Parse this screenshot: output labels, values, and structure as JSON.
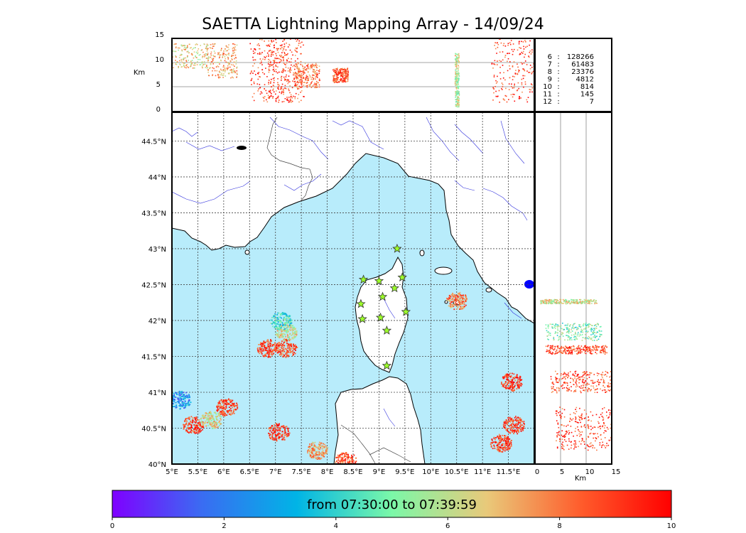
{
  "title": "SAETTA Lightning Mapping Array - 14/09/24",
  "colors": {
    "sea": "#b8ecfb",
    "land": "#ffffff",
    "river": "#3333dd",
    "border": "#444444",
    "grid": "#444444",
    "altitude_line": "#888888"
  },
  "altitude_panel": {
    "axis_label": "Km",
    "ticks": [
      "15",
      "10",
      "5",
      "0"
    ],
    "range": [
      0,
      15
    ]
  },
  "side_panel": {
    "axis_label": "Km",
    "ticks": [
      "0",
      "5",
      "10",
      "15"
    ],
    "range": [
      0,
      15
    ]
  },
  "station_counts": [
    {
      "stations": "6",
      "count": "128266",
      "highlight": false
    },
    {
      "stations": "7",
      "count": "61483",
      "highlight": true
    },
    {
      "stations": "8",
      "count": "23376",
      "highlight": false
    },
    {
      "stations": "9",
      "count": "4812",
      "highlight": false
    },
    {
      "stations": "10",
      "count": "814",
      "highlight": false
    },
    {
      "stations": "11",
      "count": "145",
      "highlight": false
    },
    {
      "stations": "12",
      "count": "7",
      "highlight": false
    }
  ],
  "map": {
    "lon_range": [
      5.0,
      12.0
    ],
    "lat_range": [
      40.0,
      44.9
    ],
    "lon_ticks": [
      "5°E",
      "5.5°E",
      "6°E",
      "6.5°E",
      "7°E",
      "7.5°E",
      "8°E",
      "8.5°E",
      "9°E",
      "9.5°E",
      "10°E",
      "10.5°E",
      "11°E",
      "11.5°E"
    ],
    "lat_ticks": [
      "44.5°N",
      "44°N",
      "43.5°N",
      "43°N",
      "42.5°N",
      "42°N",
      "41.5°N",
      "41°N",
      "40.5°N",
      "40°N"
    ],
    "stations": [
      {
        "lon": 9.35,
        "lat": 43.0
      },
      {
        "lon": 8.7,
        "lat": 42.57
      },
      {
        "lon": 9.0,
        "lat": 42.55
      },
      {
        "lon": 9.45,
        "lat": 42.6
      },
      {
        "lon": 9.3,
        "lat": 42.45
      },
      {
        "lon": 9.07,
        "lat": 42.33
      },
      {
        "lon": 8.65,
        "lat": 42.23
      },
      {
        "lon": 9.52,
        "lat": 42.12
      },
      {
        "lon": 8.68,
        "lat": 42.02
      },
      {
        "lon": 9.03,
        "lat": 42.04
      },
      {
        "lon": 9.15,
        "lat": 41.86
      },
      {
        "lon": 9.15,
        "lat": 41.37
      }
    ],
    "storm_cells": [
      {
        "lon": 7.2,
        "lat": 41.85,
        "time": 6.2
      },
      {
        "lon": 7.1,
        "lat": 42.0,
        "time": 4.2
      },
      {
        "lon": 6.85,
        "lat": 41.62,
        "time": 8.8
      },
      {
        "lon": 7.2,
        "lat": 41.62,
        "time": 8.6
      },
      {
        "lon": 5.15,
        "lat": 40.9,
        "time": 2.5
      },
      {
        "lon": 5.4,
        "lat": 40.55,
        "time": 8.8
      },
      {
        "lon": 5.75,
        "lat": 40.62,
        "time": 6.5
      },
      {
        "lon": 6.05,
        "lat": 40.8,
        "time": 8.7
      },
      {
        "lon": 7.05,
        "lat": 40.45,
        "time": 9.0
      },
      {
        "lon": 7.8,
        "lat": 40.2,
        "time": 7.2
      },
      {
        "lon": 8.35,
        "lat": 40.05,
        "time": 8.5
      },
      {
        "lon": 11.55,
        "lat": 41.15,
        "time": 9.0
      },
      {
        "lon": 11.6,
        "lat": 40.55,
        "time": 8.9
      },
      {
        "lon": 11.35,
        "lat": 40.3,
        "time": 9.0
      },
      {
        "lon": 10.5,
        "lat": 42.28,
        "time": 8.0
      }
    ]
  },
  "colorbar": {
    "label": "from 07:30:00 to 07:39:59",
    "ticks": [
      "0",
      "2",
      "4",
      "6",
      "8",
      "10"
    ],
    "range": [
      0,
      10
    ],
    "stops": [
      "#7f00ff",
      "#3a6cf2",
      "#00b4e6",
      "#7bf8a8",
      "#e9c97a",
      "#ff5b2b",
      "#ff0000"
    ]
  }
}
